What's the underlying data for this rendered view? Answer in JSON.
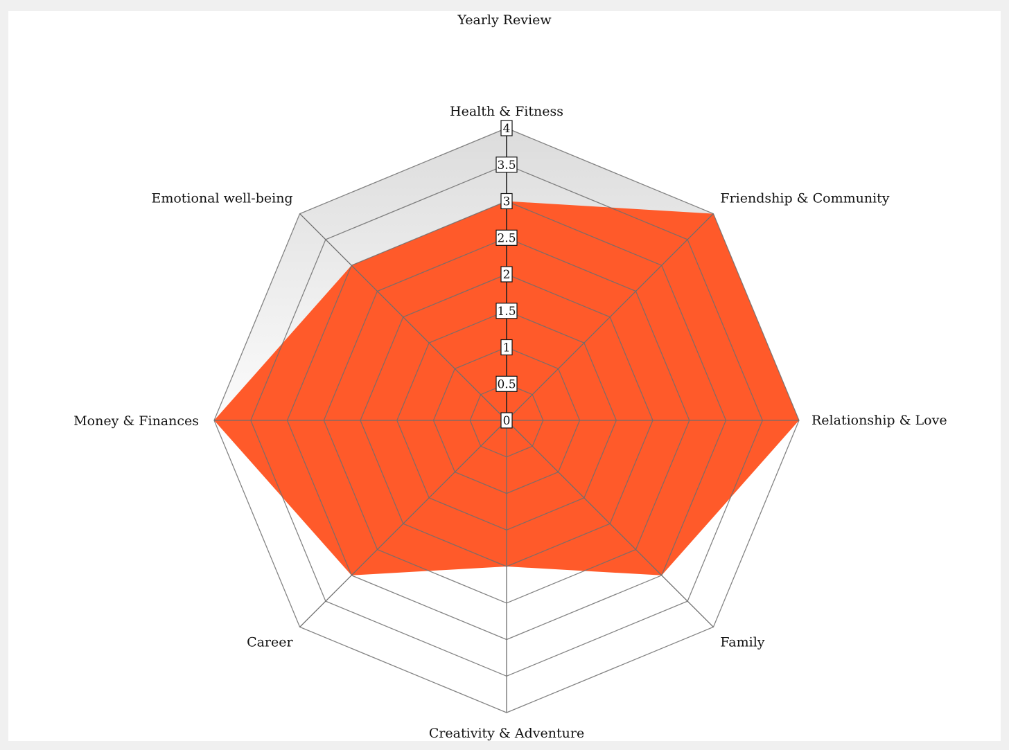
{
  "chart_data": {
    "type": "radar",
    "title": "Yearly Review",
    "categories": [
      "Health & Fitness",
      "Friendship & Community",
      "Relationship & Love",
      "Family",
      "Creativity & Adventure",
      "Career",
      "Money & Finances",
      "Emotional well-being"
    ],
    "series": [
      {
        "values": [
          3,
          4,
          4,
          3,
          2,
          3,
          4,
          3
        ],
        "color": "#ff5a2a"
      }
    ],
    "ticks": [
      "0",
      "0.5",
      "1",
      "1.5",
      "2",
      "2.5",
      "3",
      "3.5",
      "4"
    ],
    "range": [
      0,
      4
    ],
    "grid": true
  }
}
